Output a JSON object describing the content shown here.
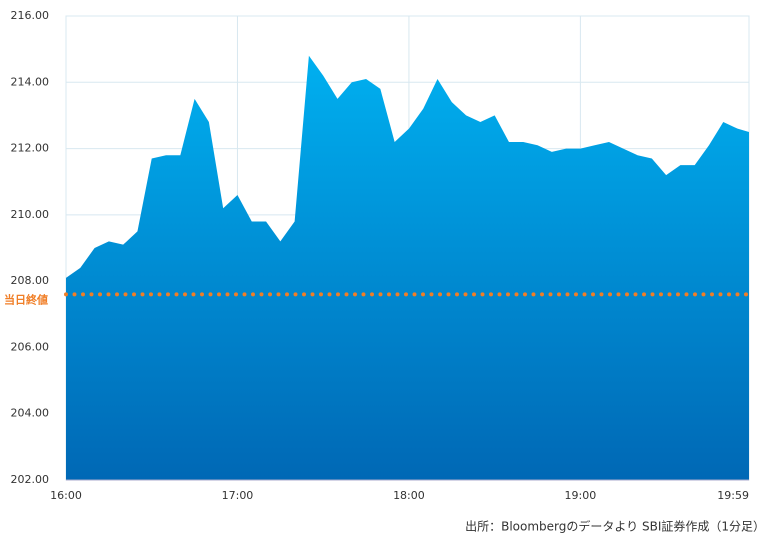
{
  "chart_data": {
    "type": "area",
    "x": [
      "16:00",
      "16:05",
      "16:10",
      "16:15",
      "16:20",
      "16:25",
      "16:30",
      "16:35",
      "16:40",
      "16:45",
      "16:50",
      "16:55",
      "17:00",
      "17:05",
      "17:10",
      "17:15",
      "17:20",
      "17:25",
      "17:30",
      "17:35",
      "17:40",
      "17:45",
      "17:50",
      "17:55",
      "18:00",
      "18:05",
      "18:10",
      "18:15",
      "18:20",
      "18:25",
      "18:30",
      "18:35",
      "18:40",
      "18:45",
      "18:50",
      "18:55",
      "19:00",
      "19:05",
      "19:10",
      "19:15",
      "19:20",
      "19:25",
      "19:30",
      "19:35",
      "19:40",
      "19:45",
      "19:50",
      "19:55",
      "19:59"
    ],
    "values": [
      208.1,
      208.4,
      209.0,
      209.2,
      209.1,
      209.5,
      211.7,
      211.8,
      211.8,
      213.5,
      212.8,
      210.2,
      210.6,
      209.8,
      209.8,
      209.2,
      209.8,
      214.8,
      214.2,
      213.5,
      214.0,
      214.1,
      213.8,
      212.2,
      212.6,
      213.2,
      214.1,
      213.4,
      213.0,
      212.8,
      213.0,
      212.2,
      212.2,
      212.1,
      211.9,
      212.0,
      212.0,
      212.1,
      212.2,
      212.0,
      211.8,
      211.7,
      211.2,
      211.5,
      211.5,
      212.1,
      212.8,
      212.6,
      212.5
    ],
    "colors": [
      "#00b0f0",
      "#0068b5"
    ],
    "ylim": [
      202,
      216
    ],
    "yticks": [
      {
        "value": 202,
        "label": "202.00"
      },
      {
        "value": 204,
        "label": "204.00"
      },
      {
        "value": 206,
        "label": "206.00"
      },
      {
        "value": 208,
        "label": "208.00"
      },
      {
        "value": 210,
        "label": "210.00"
      },
      {
        "value": 212,
        "label": "212.00"
      },
      {
        "value": 214,
        "label": "214.00"
      },
      {
        "value": 216,
        "label": "216.00"
      }
    ],
    "xlim": [
      "16:00",
      "19:59"
    ],
    "xticks": [
      "16:00",
      "17:00",
      "18:00",
      "19:00",
      "19:59"
    ],
    "reference_line": {
      "label": "当日終値",
      "value": 207.6,
      "color": "#f07e26"
    },
    "grid": true,
    "source": "出所：Bloombergのデータより SBI証券作成（1分足）"
  }
}
